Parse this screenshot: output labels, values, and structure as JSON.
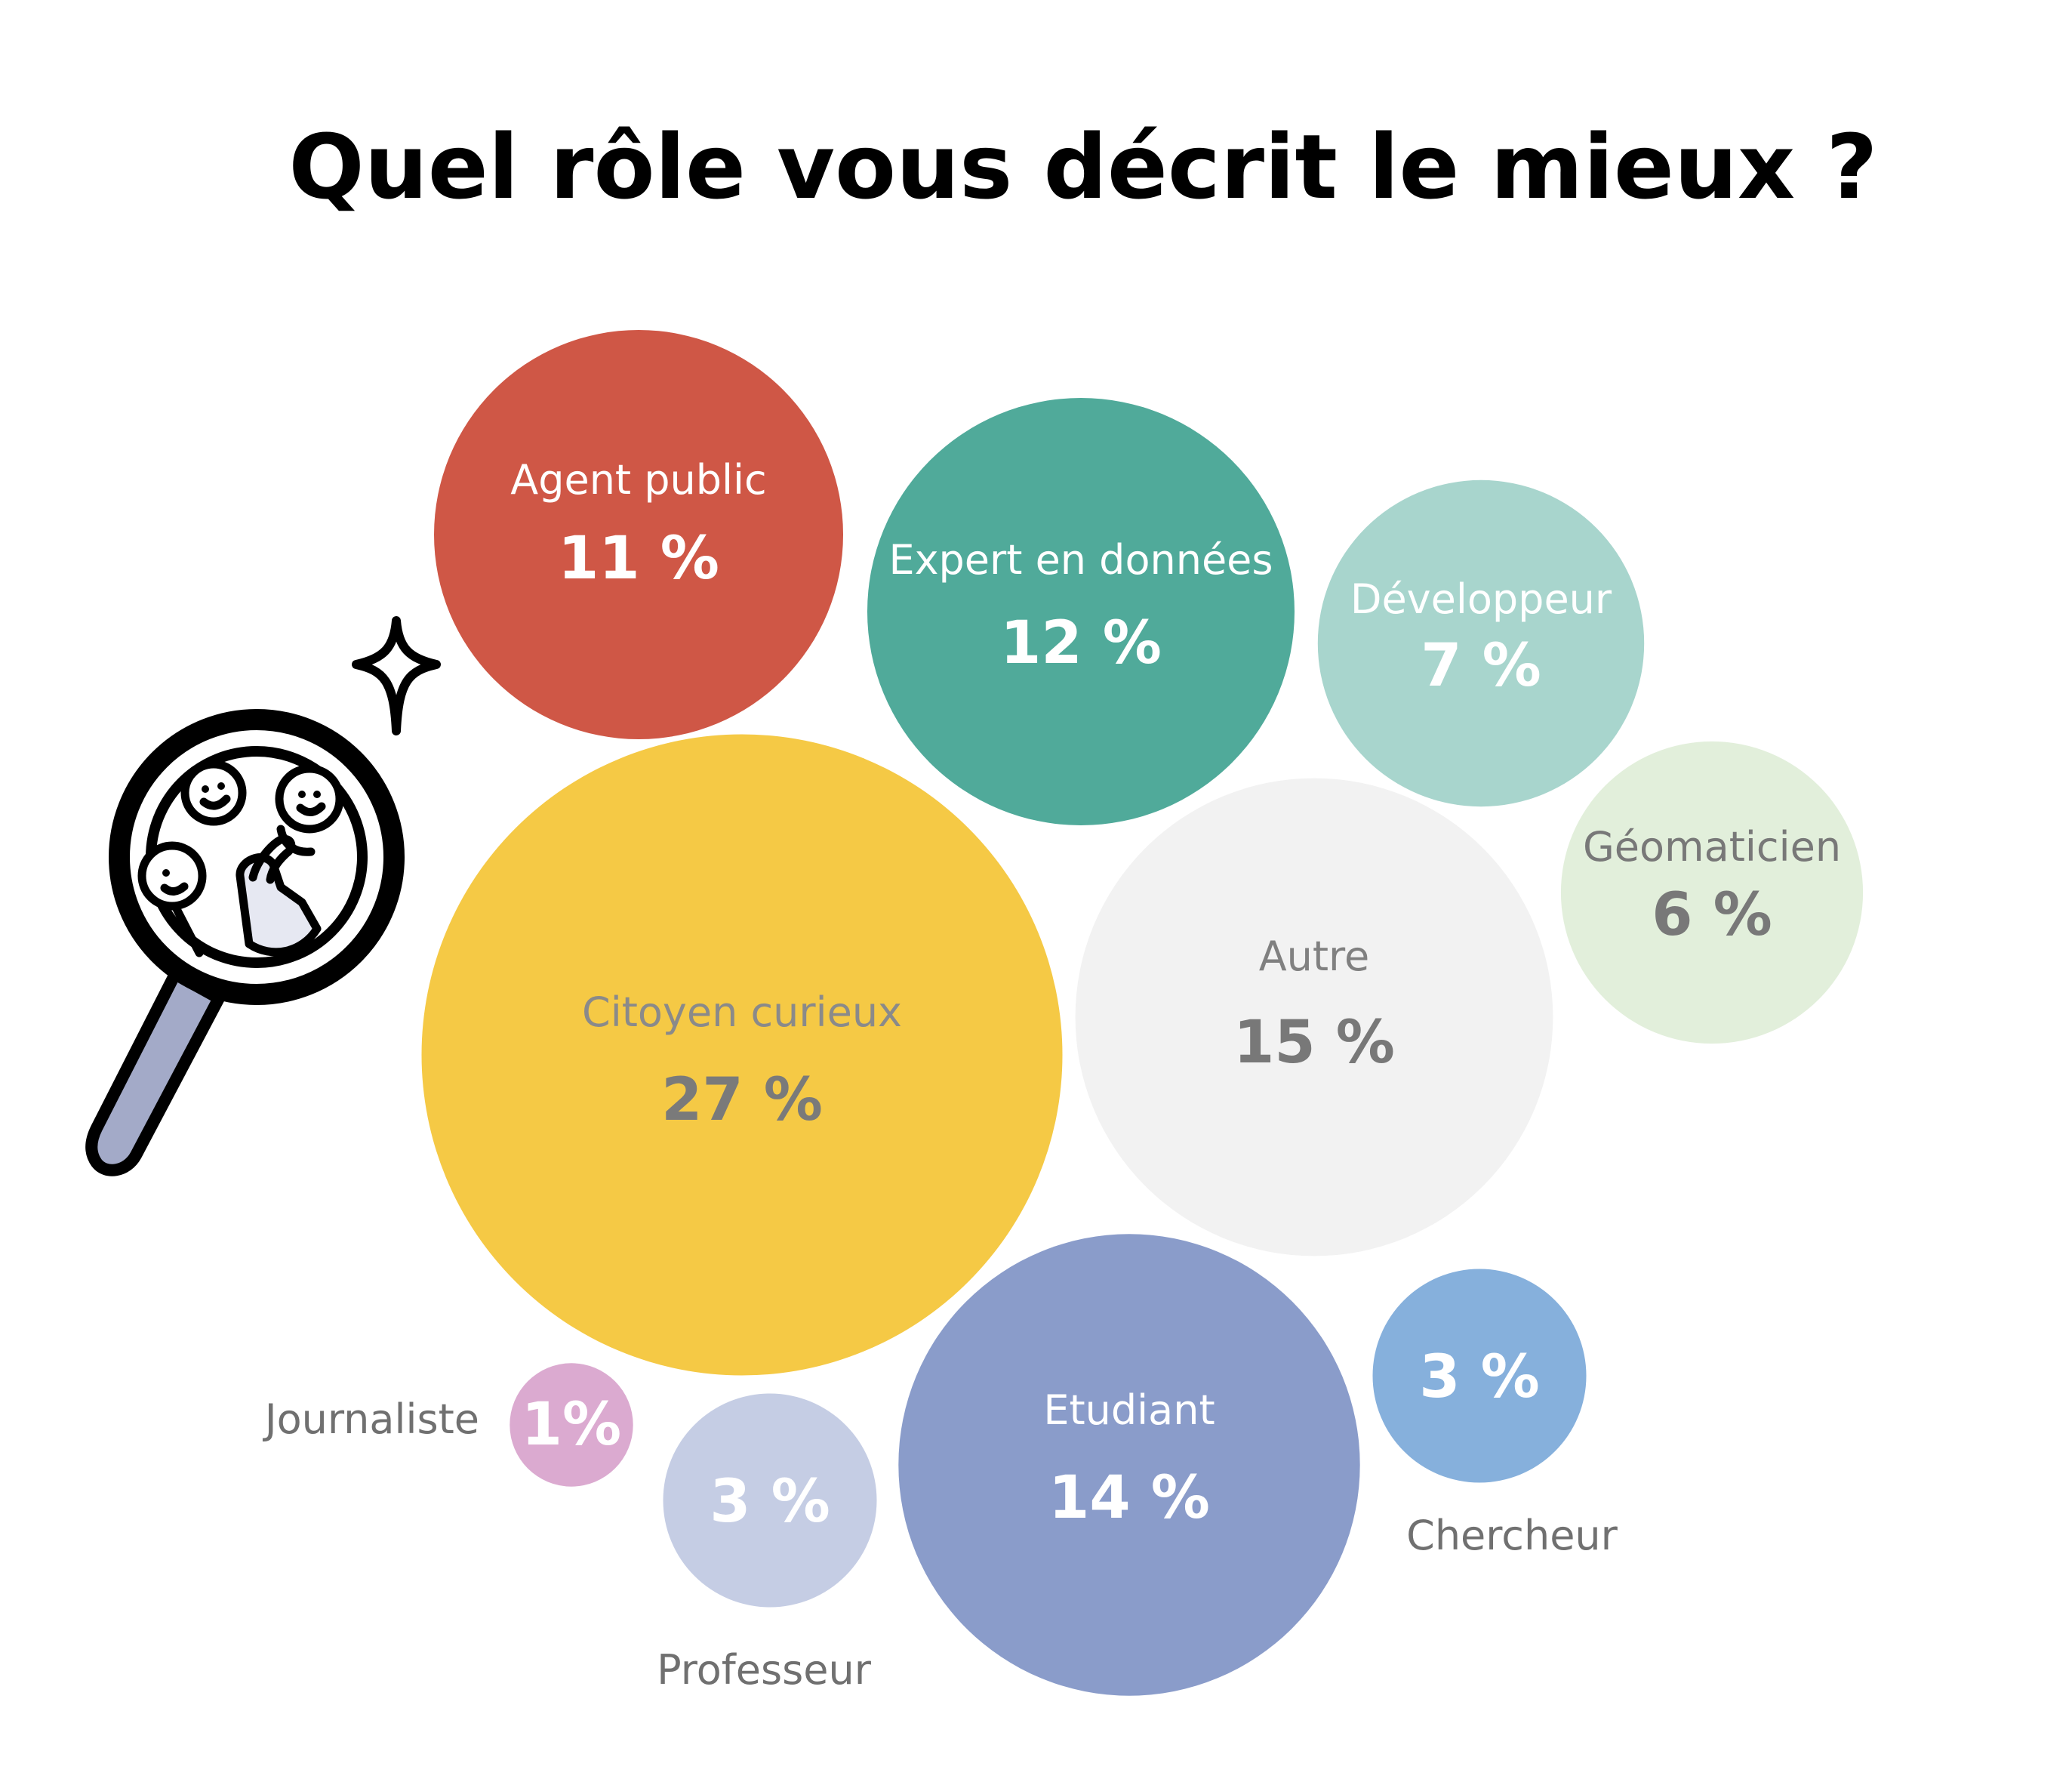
{
  "chart_data": {
    "type": "bubble",
    "title": "Quel rôle vous décrit le mieux ?",
    "unit": "%",
    "categories": [
      "Agent public",
      "Expert en données",
      "Développeur",
      "Géomaticien",
      "Citoyen curieux",
      "Autre",
      "Journaliste",
      "Professeur",
      "Etudiant",
      "Chercheur"
    ],
    "values": [
      11,
      12,
      7,
      6,
      27,
      15,
      1,
      3,
      14,
      3
    ],
    "series": [
      {
        "name": "Agent public",
        "value": 11,
        "value_label": "11 %",
        "color": "#cf5746"
      },
      {
        "name": "Expert en données",
        "value": 12,
        "value_label": "12 %",
        "color": "#50aa9a"
      },
      {
        "name": "Développeur",
        "value": 7,
        "value_label": "7 %",
        "color": "#a8d5cd"
      },
      {
        "name": "Géomaticien",
        "value": 6,
        "value_label": "6 %",
        "color": "#e2efdb"
      },
      {
        "name": "Citoyen curieux",
        "value": 27,
        "value_label": "27 %",
        "color": "#f5c945"
      },
      {
        "name": "Autre",
        "value": 15,
        "value_label": "15 %",
        "color": "#f2f2f2"
      },
      {
        "name": "Journaliste",
        "value": 1,
        "value_label": "1%",
        "color": "#dbaad0"
      },
      {
        "name": "Professeur",
        "value": 3,
        "value_label": "3 %",
        "color": "#c5cde4"
      },
      {
        "name": "Etudiant",
        "value": 14,
        "value_label": "14 %",
        "color": "#8a9cca"
      },
      {
        "name": "Chercheur",
        "value": 3,
        "value_label": "3 %",
        "color": "#86b0dc"
      }
    ]
  },
  "illustration": {
    "icon": "magnifying-glass-people-icon",
    "sparkle_icon": "sparkle-icon",
    "handle_color": "#a3aac8",
    "outline_color": "#000000"
  }
}
